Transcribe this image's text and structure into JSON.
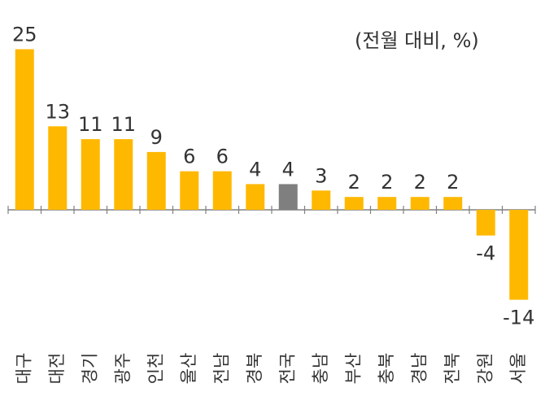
{
  "chart_data": {
    "type": "bar",
    "unit_label": "(전월 대비, %)",
    "categories": [
      "대구",
      "대전",
      "경기",
      "광주",
      "인천",
      "울산",
      "전남",
      "경북",
      "전국",
      "충남",
      "부산",
      "충북",
      "경남",
      "전북",
      "강원",
      "서울"
    ],
    "values": [
      25,
      13,
      11,
      11,
      9,
      6,
      6,
      4,
      4,
      3,
      2,
      2,
      2,
      2,
      -4,
      -14
    ],
    "value_labels": [
      "25",
      "13",
      "11",
      "11",
      "9",
      "6",
      "6",
      "4",
      "4",
      "3",
      "2",
      "2",
      "2",
      "2",
      "-4",
      "-14"
    ],
    "highlight_category": "전국",
    "ylim": [
      -14.5,
      25.5
    ],
    "grid": false,
    "colors": {
      "bar": "#FFB800",
      "highlight": "#7F7F7F",
      "axis": "#808080",
      "text": "#333333"
    }
  }
}
